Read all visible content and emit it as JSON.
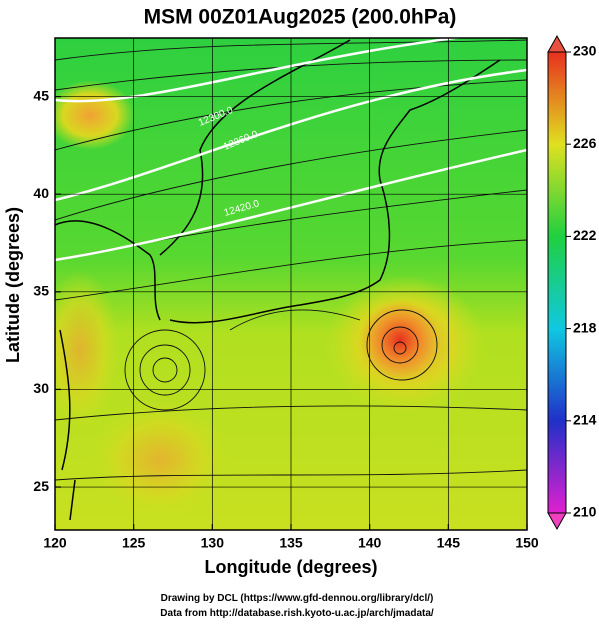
{
  "chart_data": {
    "type": "heatmap",
    "title": "MSM 00Z01Aug2025 (200.0hPa)",
    "xlabel": "Longitude (degrees)",
    "ylabel": "Latitude  (degrees)",
    "xlim": [
      120,
      150
    ],
    "ylim": [
      22.8,
      48
    ],
    "xticks": [
      120,
      125,
      130,
      135,
      140,
      145,
      150
    ],
    "yticks": [
      25,
      30,
      35,
      40,
      45
    ],
    "grid": true,
    "colorbar": {
      "lim": [
        210,
        230
      ],
      "ticks": [
        210,
        214,
        218,
        222,
        226,
        230
      ]
    },
    "contour_labels": [
      "12300.0",
      "12360.0",
      "12420.0"
    ],
    "credits": [
      "Drawing by DCL (https://www.gfd-dennou.org/library/dcl/)",
      "Data from http://database.rish.kyoto-u.ac.jp/arch/jmadata/"
    ]
  }
}
